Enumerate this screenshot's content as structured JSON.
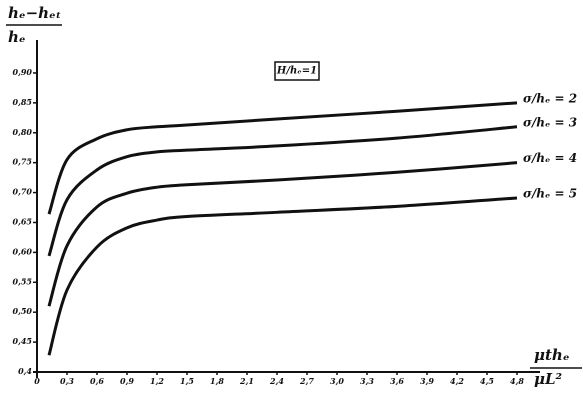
{
  "chart_data": {
    "type": "line",
    "y_label": {
      "numerator": "hₑ−hₑₜ",
      "denominator": "hₑ"
    },
    "x_label": {
      "numerator": "μthₑ",
      "denominator": "μL²"
    },
    "annotation": "H/hₑ=1",
    "xlim": [
      0,
      4.9
    ],
    "ylim": [
      0.4,
      0.92
    ],
    "xticks": [
      0,
      {
        "value": 0.3,
        "label": "0,3"
      },
      {
        "value": 0.6,
        "label": "0,6"
      },
      {
        "value": 0.9,
        "label": "0,9"
      },
      {
        "value": 1.2,
        "label": "1,2"
      },
      {
        "value": 1.5,
        "label": "1,5"
      },
      {
        "value": 1.8,
        "label": "1,8"
      },
      {
        "value": 2.1,
        "label": "2,1"
      },
      {
        "value": 2.4,
        "label": "2,4"
      },
      {
        "value": 2.7,
        "label": "2,7"
      },
      {
        "value": 3.0,
        "label": "3,0"
      },
      {
        "value": 3.3,
        "label": "3,3"
      },
      {
        "value": 3.6,
        "label": "3,6"
      },
      {
        "value": 3.9,
        "label": "3,9"
      },
      {
        "value": 4.2,
        "label": "4,2"
      },
      {
        "value": 4.5,
        "label": "4,5"
      },
      {
        "value": 4.8,
        "label": "4,8"
      }
    ],
    "yticks": [
      {
        "value": 0.4,
        "label": "0,4"
      },
      {
        "value": 0.45,
        "label": "0,45"
      },
      {
        "value": 0.5,
        "label": "0,50"
      },
      {
        "value": 0.55,
        "label": "0,55"
      },
      {
        "value": 0.6,
        "label": "0,60"
      },
      {
        "value": 0.65,
        "label": "0,65"
      },
      {
        "value": 0.7,
        "label": "0,70"
      },
      {
        "value": 0.75,
        "label": "0,75"
      },
      {
        "value": 0.8,
        "label": "0,80"
      },
      {
        "value": 0.85,
        "label": "0,85"
      },
      {
        "value": 0.9,
        "label": "0,90"
      }
    ],
    "x": [
      0.12,
      0.3,
      0.6,
      0.9,
      1.2,
      1.5,
      2.4,
      3.6,
      4.8
    ],
    "series": [
      {
        "name": "σ/hₑ = 2",
        "color": "#111111",
        "values": [
          0.664,
          0.755,
          0.79,
          0.805,
          0.81,
          0.813,
          0.823,
          0.836,
          0.85
        ]
      },
      {
        "name": "σ/hₑ = 3",
        "color": "#111111",
        "values": [
          0.594,
          0.688,
          0.738,
          0.76,
          0.768,
          0.771,
          0.778,
          0.791,
          0.81
        ]
      },
      {
        "name": "σ/hₑ = 4",
        "color": "#111111",
        "values": [
          0.51,
          0.611,
          0.676,
          0.699,
          0.709,
          0.713,
          0.721,
          0.734,
          0.75
        ]
      },
      {
        "name": "σ/hₑ = 5",
        "color": "#111111",
        "values": [
          0.428,
          0.537,
          0.609,
          0.641,
          0.654,
          0.66,
          0.667,
          0.677,
          0.691
        ]
      }
    ]
  }
}
